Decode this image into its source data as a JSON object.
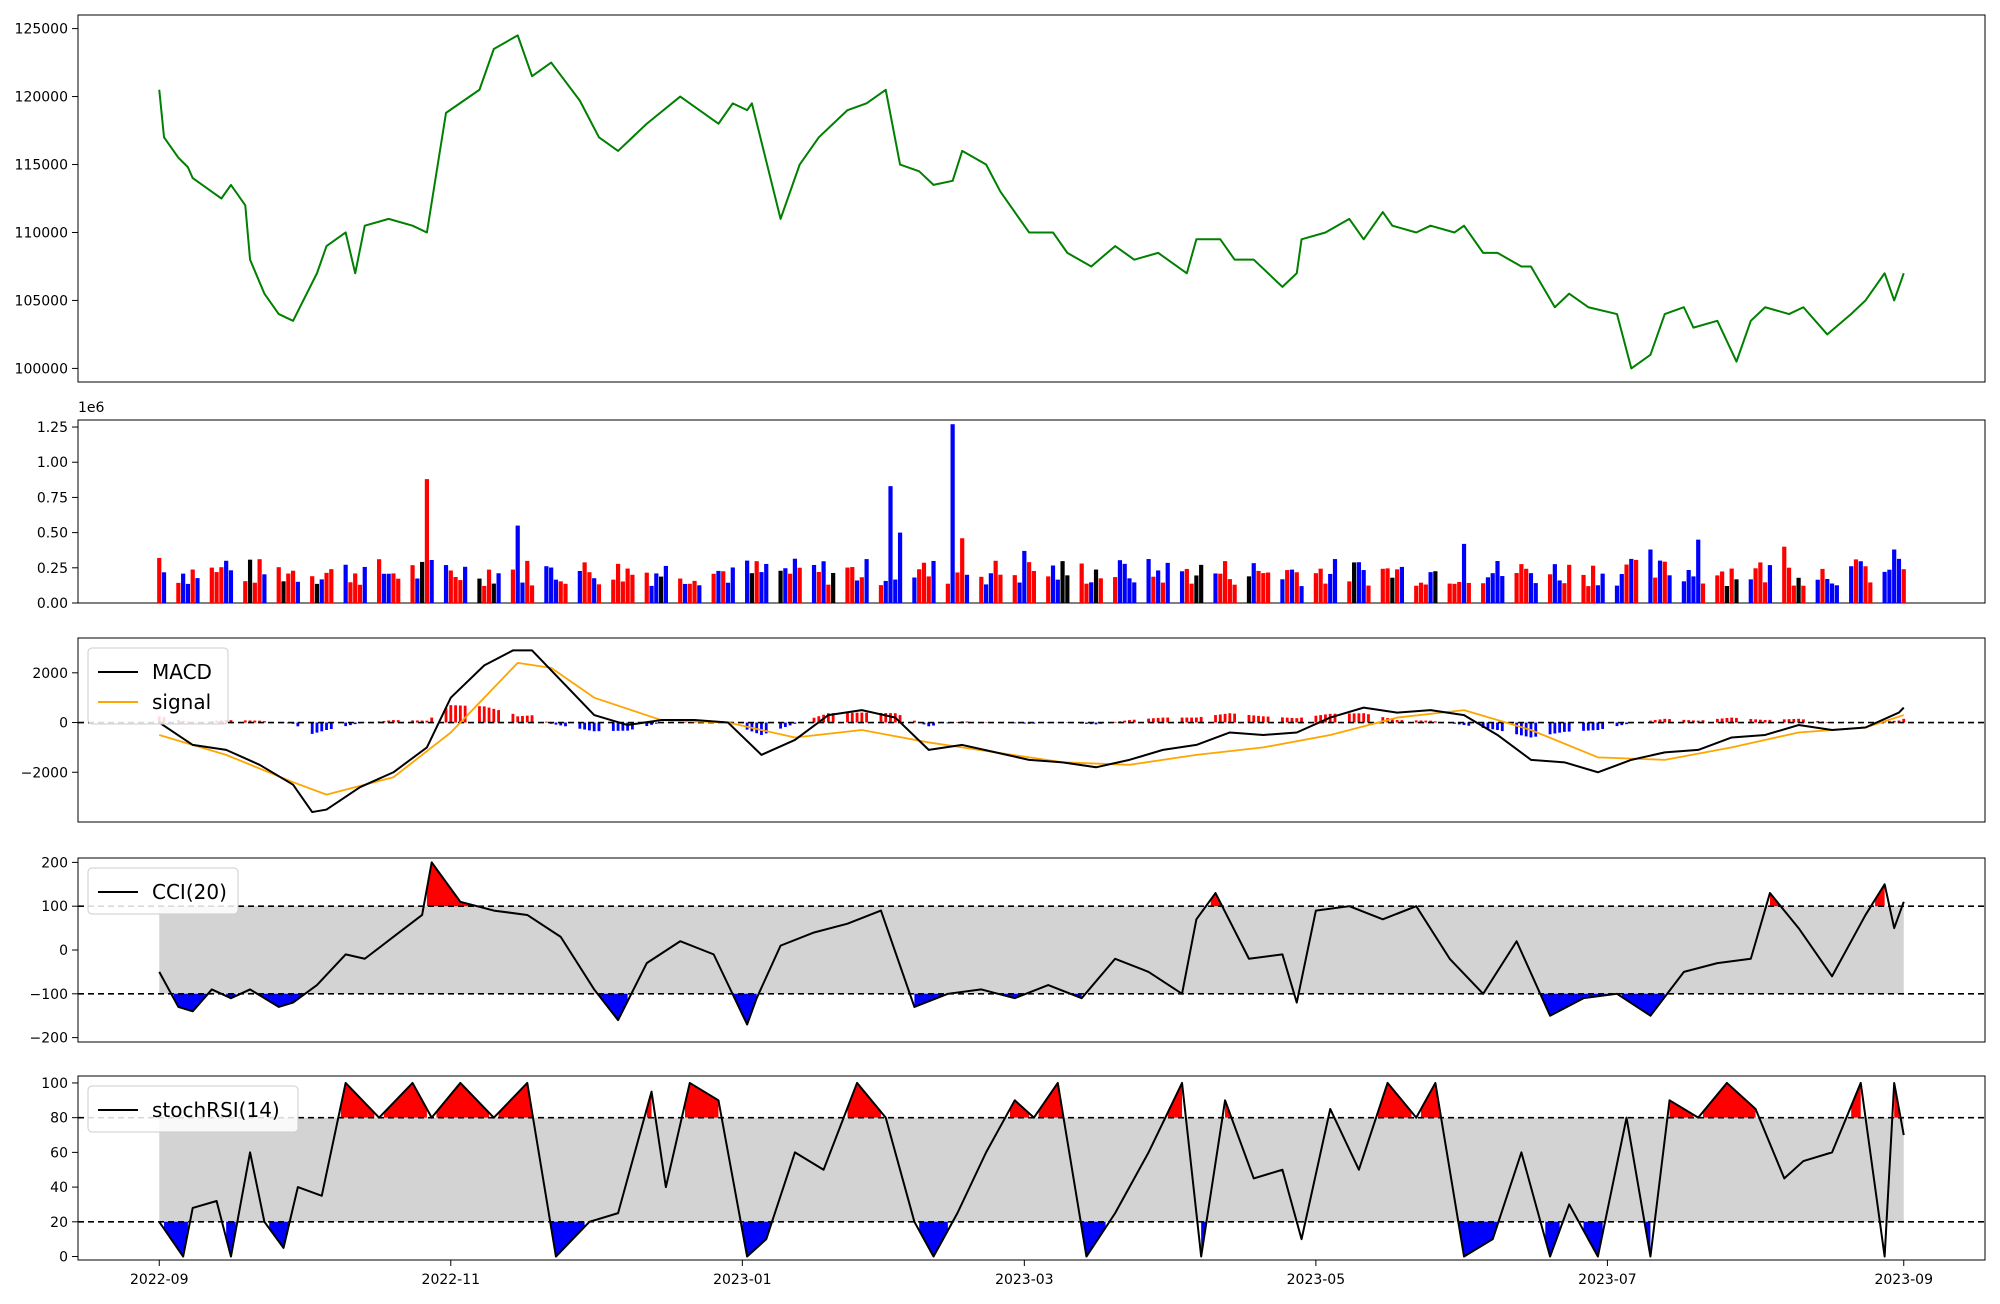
{
  "chart_data": [
    {
      "type": "line",
      "title": "",
      "xlabel": "",
      "ylabel": "",
      "ylim": [
        99000,
        126000
      ],
      "yticks": [
        100000,
        105000,
        110000,
        115000,
        120000,
        125000
      ],
      "ytick_labels": [
        "100000",
        "105000",
        "110000",
        "115000",
        "120000",
        "125000"
      ],
      "grid": false,
      "series": [
        {
          "color": "#008000",
          "x": [
            "2022-09-01",
            "2022-09-02",
            "2022-09-05",
            "2022-09-07",
            "2022-09-08",
            "2022-09-12",
            "2022-09-14",
            "2022-09-16",
            "2022-09-19",
            "2022-09-20",
            "2022-09-23",
            "2022-09-26",
            "2022-09-29",
            "2022-10-04",
            "2022-10-06",
            "2022-10-10",
            "2022-10-12",
            "2022-10-14",
            "2022-10-19",
            "2022-10-24",
            "2022-10-27",
            "2022-10-31",
            "2022-11-07",
            "2022-11-10",
            "2022-11-15",
            "2022-11-18",
            "2022-11-22",
            "2022-11-28",
            "2022-12-02",
            "2022-12-06",
            "2022-12-12",
            "2022-12-19",
            "2022-12-27",
            "2022-12-30",
            "2023-01-02",
            "2023-01-03",
            "2023-01-09",
            "2023-01-13",
            "2023-01-17",
            "2023-01-23",
            "2023-01-27",
            "2023-01-31",
            "2023-02-03",
            "2023-02-07",
            "2023-02-10",
            "2023-02-14",
            "2023-02-16",
            "2023-02-21",
            "2023-02-24",
            "2023-03-02",
            "2023-03-07",
            "2023-03-10",
            "2023-03-15",
            "2023-03-20",
            "2023-03-24",
            "2023-03-29",
            "2023-04-04",
            "2023-04-06",
            "2023-04-11",
            "2023-04-14",
            "2023-04-18",
            "2023-04-24",
            "2023-04-27",
            "2023-04-28",
            "2023-05-03",
            "2023-05-08",
            "2023-05-11",
            "2023-05-15",
            "2023-05-17",
            "2023-05-22",
            "2023-05-25",
            "2023-05-30",
            "2023-06-01",
            "2023-06-05",
            "2023-06-08",
            "2023-06-13",
            "2023-06-15",
            "2023-06-20",
            "2023-06-23",
            "2023-06-27",
            "2023-07-03",
            "2023-07-06",
            "2023-07-10",
            "2023-07-13",
            "2023-07-17",
            "2023-07-19",
            "2023-07-24",
            "2023-07-28",
            "2023-07-31",
            "2023-08-03",
            "2023-08-08",
            "2023-08-11",
            "2023-08-16",
            "2023-08-21",
            "2023-08-24",
            "2023-08-28",
            "2023-08-30",
            "2023-09-01"
          ],
          "y": [
            120500,
            117000,
            115500,
            114800,
            114000,
            113000,
            112500,
            113500,
            112000,
            108000,
            105500,
            104000,
            103500,
            107000,
            109000,
            110000,
            107000,
            110500,
            111000,
            110500,
            110000,
            118800,
            120500,
            123500,
            124500,
            121500,
            122500,
            119700,
            117000,
            116000,
            118000,
            120000,
            118000,
            119500,
            119000,
            119500,
            111000,
            115000,
            117000,
            119000,
            119500,
            120500,
            115000,
            114500,
            113500,
            113800,
            116000,
            115000,
            113000,
            110000,
            110000,
            108500,
            107500,
            109000,
            108000,
            108500,
            107000,
            109500,
            109500,
            108000,
            108000,
            106000,
            107000,
            109500,
            110000,
            111000,
            109500,
            111500,
            110500,
            110000,
            110500,
            110000,
            110500,
            108500,
            108500,
            107500,
            107500,
            104500,
            105500,
            104500,
            104000,
            100000,
            101000,
            104000,
            104500,
            103000,
            103500,
            100500,
            103500,
            104500,
            104000,
            104500,
            102500,
            104000,
            105000,
            107000,
            105000,
            107000
          ]
        }
      ]
    },
    {
      "type": "bar",
      "title": "",
      "xlabel": "",
      "ylabel": "",
      "offset_text": "1e6",
      "ylim": [
        0,
        1.3
      ],
      "yticks": [
        0,
        0.25,
        0.5,
        0.75,
        1.0,
        1.25
      ],
      "ytick_labels": [
        "0.00",
        "0.25",
        "0.50",
        "0.75",
        "1.00",
        "1.25"
      ],
      "grid": false,
      "colors": {
        "up": "#ff0000",
        "down": "#0000ff",
        "flat": "#000000"
      },
      "x": [
        "2022-09-01",
        "2022-09-15",
        "2022-10-27",
        "2022-11-15",
        "2023-02-01",
        "2023-02-03",
        "2023-02-14",
        "2023-02-16",
        "2023-03-01",
        "2023-06-01",
        "2023-07-10",
        "2023-07-20",
        "2023-08-07",
        "2023-08-30",
        "2023-09-01"
      ],
      "values": [
        0.32,
        0.3,
        0.88,
        0.55,
        0.83,
        0.5,
        1.27,
        0.46,
        0.37,
        0.42,
        0.38,
        0.45,
        0.4,
        0.38,
        0.24
      ],
      "bar_colors": [
        "red",
        "blue",
        "red",
        "blue",
        "blue",
        "blue",
        "blue",
        "red",
        "blue",
        "blue",
        "blue",
        "blue",
        "red",
        "blue",
        "red"
      ]
    },
    {
      "type": "line",
      "title": "",
      "xlabel": "",
      "ylabel": "",
      "ylim": [
        -4000,
        3400
      ],
      "yticks": [
        -2000,
        0,
        2000
      ],
      "ytick_labels": [
        "−2000",
        "0",
        "2000"
      ],
      "legend": "upper-left",
      "grid": false,
      "hline": 0,
      "series": [
        {
          "name": "MACD",
          "color": "#000000",
          "x": [
            "2022-09-01",
            "2022-09-08",
            "2022-09-15",
            "2022-09-22",
            "2022-09-29",
            "2022-10-03",
            "2022-10-06",
            "2022-10-13",
            "2022-10-20",
            "2022-10-27",
            "2022-11-01",
            "2022-11-08",
            "2022-11-14",
            "2022-11-18",
            "2022-11-25",
            "2022-12-01",
            "2022-12-08",
            "2022-12-15",
            "2022-12-22",
            "2022-12-29",
            "2023-01-05",
            "2023-01-12",
            "2023-01-19",
            "2023-01-26",
            "2023-02-02",
            "2023-02-09",
            "2023-02-16",
            "2023-02-23",
            "2023-03-02",
            "2023-03-09",
            "2023-03-16",
            "2023-03-23",
            "2023-03-30",
            "2023-04-06",
            "2023-04-13",
            "2023-04-20",
            "2023-04-27",
            "2023-05-04",
            "2023-05-11",
            "2023-05-18",
            "2023-05-25",
            "2023-06-01",
            "2023-06-08",
            "2023-06-15",
            "2023-06-22",
            "2023-06-29",
            "2023-07-06",
            "2023-07-13",
            "2023-07-20",
            "2023-07-27",
            "2023-08-03",
            "2023-08-10",
            "2023-08-17",
            "2023-08-24",
            "2023-08-31",
            "2023-09-01"
          ],
          "y": [
            0,
            -900,
            -1100,
            -1700,
            -2500,
            -3600,
            -3500,
            -2600,
            -2000,
            -1000,
            1000,
            2300,
            2900,
            2900,
            1500,
            300,
            -100,
            100,
            100,
            0,
            -1300,
            -700,
            300,
            500,
            200,
            -1100,
            -900,
            -1200,
            -1500,
            -1600,
            -1800,
            -1500,
            -1100,
            -900,
            -400,
            -500,
            -400,
            200,
            600,
            400,
            500,
            300,
            -500,
            -1500,
            -1600,
            -2000,
            -1500,
            -1200,
            -1100,
            -600,
            -500,
            -100,
            -300,
            -200,
            400,
            600
          ]
        },
        {
          "name": "signal",
          "color": "#ffa500",
          "x": [
            "2022-09-01",
            "2022-09-15",
            "2022-09-29",
            "2022-10-06",
            "2022-10-20",
            "2022-11-01",
            "2022-11-15",
            "2022-11-22",
            "2022-12-01",
            "2022-12-15",
            "2022-12-29",
            "2023-01-12",
            "2023-01-26",
            "2023-02-09",
            "2023-02-23",
            "2023-03-09",
            "2023-03-23",
            "2023-04-06",
            "2023-04-20",
            "2023-05-04",
            "2023-05-18",
            "2023-06-01",
            "2023-06-15",
            "2023-06-29",
            "2023-07-13",
            "2023-07-27",
            "2023-08-10",
            "2023-08-24",
            "2023-09-01"
          ],
          "y": [
            -500,
            -1300,
            -2400,
            -2900,
            -2200,
            -400,
            2400,
            2200,
            1000,
            100,
            0,
            -600,
            -300,
            -800,
            -1200,
            -1600,
            -1700,
            -1300,
            -1000,
            -500,
            200,
            500,
            -300,
            -1400,
            -1500,
            -1000,
            -400,
            -200,
            300
          ]
        }
      ]
    },
    {
      "type": "line",
      "title": "",
      "xlabel": "",
      "ylabel": "",
      "ylim": [
        -210,
        210
      ],
      "yticks": [
        -200,
        -100,
        0,
        100,
        200
      ],
      "ytick_labels": [
        "−200",
        "−100",
        "0",
        "100",
        "200"
      ],
      "legend": "upper-left",
      "grid": false,
      "band": [
        -100,
        100
      ],
      "colors": {
        "above": "#ff0000",
        "below": "#0000ff",
        "band": "#d3d3d3"
      },
      "series": [
        {
          "name": "CCI(20)",
          "color": "#000000",
          "x": [
            "2022-09-01",
            "2022-09-05",
            "2022-09-08",
            "2022-09-12",
            "2022-09-16",
            "2022-09-20",
            "2022-09-26",
            "2022-09-29",
            "2022-10-04",
            "2022-10-10",
            "2022-10-14",
            "2022-10-20",
            "2022-10-26",
            "2022-10-28",
            "2022-11-03",
            "2022-11-10",
            "2022-11-17",
            "2022-11-24",
            "2022-12-01",
            "2022-12-06",
            "2022-12-12",
            "2022-12-19",
            "2022-12-26",
            "2023-01-02",
            "2023-01-04",
            "2023-01-09",
            "2023-01-16",
            "2023-01-23",
            "2023-01-30",
            "2023-02-06",
            "2023-02-13",
            "2023-02-20",
            "2023-02-27",
            "2023-03-06",
            "2023-03-13",
            "2023-03-20",
            "2023-03-27",
            "2023-04-03",
            "2023-04-06",
            "2023-04-10",
            "2023-04-17",
            "2023-04-24",
            "2023-04-27",
            "2023-05-01",
            "2023-05-08",
            "2023-05-15",
            "2023-05-22",
            "2023-05-29",
            "2023-06-05",
            "2023-06-12",
            "2023-06-19",
            "2023-06-26",
            "2023-07-03",
            "2023-07-10",
            "2023-07-17",
            "2023-07-24",
            "2023-07-31",
            "2023-08-04",
            "2023-08-10",
            "2023-08-17",
            "2023-08-24",
            "2023-08-28",
            "2023-08-30",
            "2023-09-01"
          ],
          "y": [
            -50,
            -130,
            -140,
            -90,
            -110,
            -90,
            -130,
            -120,
            -80,
            -10,
            -20,
            30,
            80,
            200,
            110,
            90,
            80,
            30,
            -90,
            -160,
            -30,
            20,
            -10,
            -170,
            -110,
            10,
            40,
            60,
            90,
            -130,
            -100,
            -90,
            -110,
            -80,
            -110,
            -20,
            -50,
            -100,
            70,
            130,
            -20,
            -10,
            -120,
            90,
            100,
            70,
            100,
            -20,
            -100,
            20,
            -150,
            -110,
            -100,
            -150,
            -50,
            -30,
            -20,
            130,
            50,
            -60,
            80,
            150,
            50,
            110
          ]
        }
      ]
    },
    {
      "type": "line",
      "title": "",
      "xlabel": "",
      "ylabel": "",
      "ylim": [
        -2,
        104
      ],
      "yticks": [
        0,
        20,
        40,
        60,
        80,
        100
      ],
      "ytick_labels": [
        "0",
        "20",
        "40",
        "60",
        "80",
        "100"
      ],
      "legend": "upper-left",
      "grid": false,
      "band": [
        20,
        80
      ],
      "colors": {
        "above": "#ff0000",
        "below": "#0000ff",
        "band": "#d3d3d3"
      },
      "xticks": [
        "2022-09-01",
        "2022-11-01",
        "2023-01-01",
        "2023-03-01",
        "2023-05-01",
        "2023-07-01",
        "2023-09-01"
      ],
      "xtick_labels": [
        "2022-09",
        "2022-11",
        "2023-01",
        "2023-03",
        "2023-05",
        "2023-07",
        "2023-09"
      ],
      "series": [
        {
          "name": "stochRSI(14)",
          "color": "#000000",
          "x": [
            "2022-09-01",
            "2022-09-06",
            "2022-09-08",
            "2022-09-13",
            "2022-09-16",
            "2022-09-20",
            "2022-09-23",
            "2022-09-27",
            "2022-09-30",
            "2022-10-05",
            "2022-10-10",
            "2022-10-17",
            "2022-10-24",
            "2022-10-28",
            "2022-11-03",
            "2022-11-10",
            "2022-11-17",
            "2022-11-23",
            "2022-11-30",
            "2022-12-06",
            "2022-12-13",
            "2022-12-16",
            "2022-12-21",
            "2022-12-27",
            "2023-01-02",
            "2023-01-06",
            "2023-01-12",
            "2023-01-18",
            "2023-01-25",
            "2023-01-31",
            "2023-02-06",
            "2023-02-10",
            "2023-02-15",
            "2023-02-21",
            "2023-02-27",
            "2023-03-03",
            "2023-03-08",
            "2023-03-14",
            "2023-03-20",
            "2023-03-27",
            "2023-04-03",
            "2023-04-07",
            "2023-04-12",
            "2023-04-18",
            "2023-04-24",
            "2023-04-28",
            "2023-05-04",
            "2023-05-10",
            "2023-05-16",
            "2023-05-22",
            "2023-05-26",
            "2023-06-01",
            "2023-06-07",
            "2023-06-13",
            "2023-06-19",
            "2023-06-23",
            "2023-06-29",
            "2023-07-05",
            "2023-07-10",
            "2023-07-14",
            "2023-07-20",
            "2023-07-26",
            "2023-08-01",
            "2023-08-07",
            "2023-08-11",
            "2023-08-17",
            "2023-08-23",
            "2023-08-28",
            "2023-08-30",
            "2023-09-01"
          ],
          "y": [
            20,
            0,
            28,
            32,
            0,
            60,
            20,
            5,
            40,
            35,
            100,
            80,
            100,
            80,
            100,
            80,
            100,
            0,
            20,
            25,
            95,
            40,
            100,
            90,
            0,
            10,
            60,
            50,
            100,
            80,
            20,
            0,
            25,
            60,
            90,
            80,
            100,
            0,
            25,
            60,
            100,
            0,
            90,
            45,
            50,
            10,
            85,
            50,
            100,
            80,
            100,
            0,
            10,
            60,
            0,
            30,
            0,
            80,
            0,
            90,
            80,
            100,
            85,
            45,
            55,
            60,
            100,
            0,
            100,
            70
          ]
        }
      ]
    }
  ]
}
